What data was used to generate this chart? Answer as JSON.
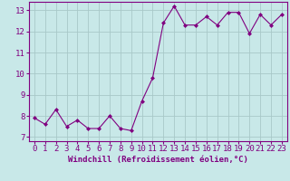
{
  "x": [
    0,
    1,
    2,
    3,
    4,
    5,
    6,
    7,
    8,
    9,
    10,
    11,
    12,
    13,
    14,
    15,
    16,
    17,
    18,
    19,
    20,
    21,
    22,
    23
  ],
  "y": [
    7.9,
    7.6,
    8.3,
    7.5,
    7.8,
    7.4,
    7.4,
    8.0,
    7.4,
    7.3,
    8.7,
    9.8,
    12.4,
    13.2,
    12.3,
    12.3,
    12.7,
    12.3,
    12.9,
    12.9,
    11.9,
    12.8,
    12.3,
    12.8
  ],
  "line_color": "#800080",
  "marker": "D",
  "marker_size": 2,
  "bg_color": "#c8e8e8",
  "grid_color": "#a8c8c8",
  "xlim": [
    -0.5,
    23.5
  ],
  "ylim": [
    6.8,
    13.4
  ],
  "yticks": [
    7,
    8,
    9,
    10,
    11,
    12,
    13
  ],
  "xticks": [
    0,
    1,
    2,
    3,
    4,
    5,
    6,
    7,
    8,
    9,
    10,
    11,
    12,
    13,
    14,
    15,
    16,
    17,
    18,
    19,
    20,
    21,
    22,
    23
  ],
  "tick_color": "#800080",
  "label_color": "#800080",
  "xlabel": "Windchill (Refroidissement éolien,°C)",
  "font_size_axis": 6.5,
  "font_size_label": 6.5
}
